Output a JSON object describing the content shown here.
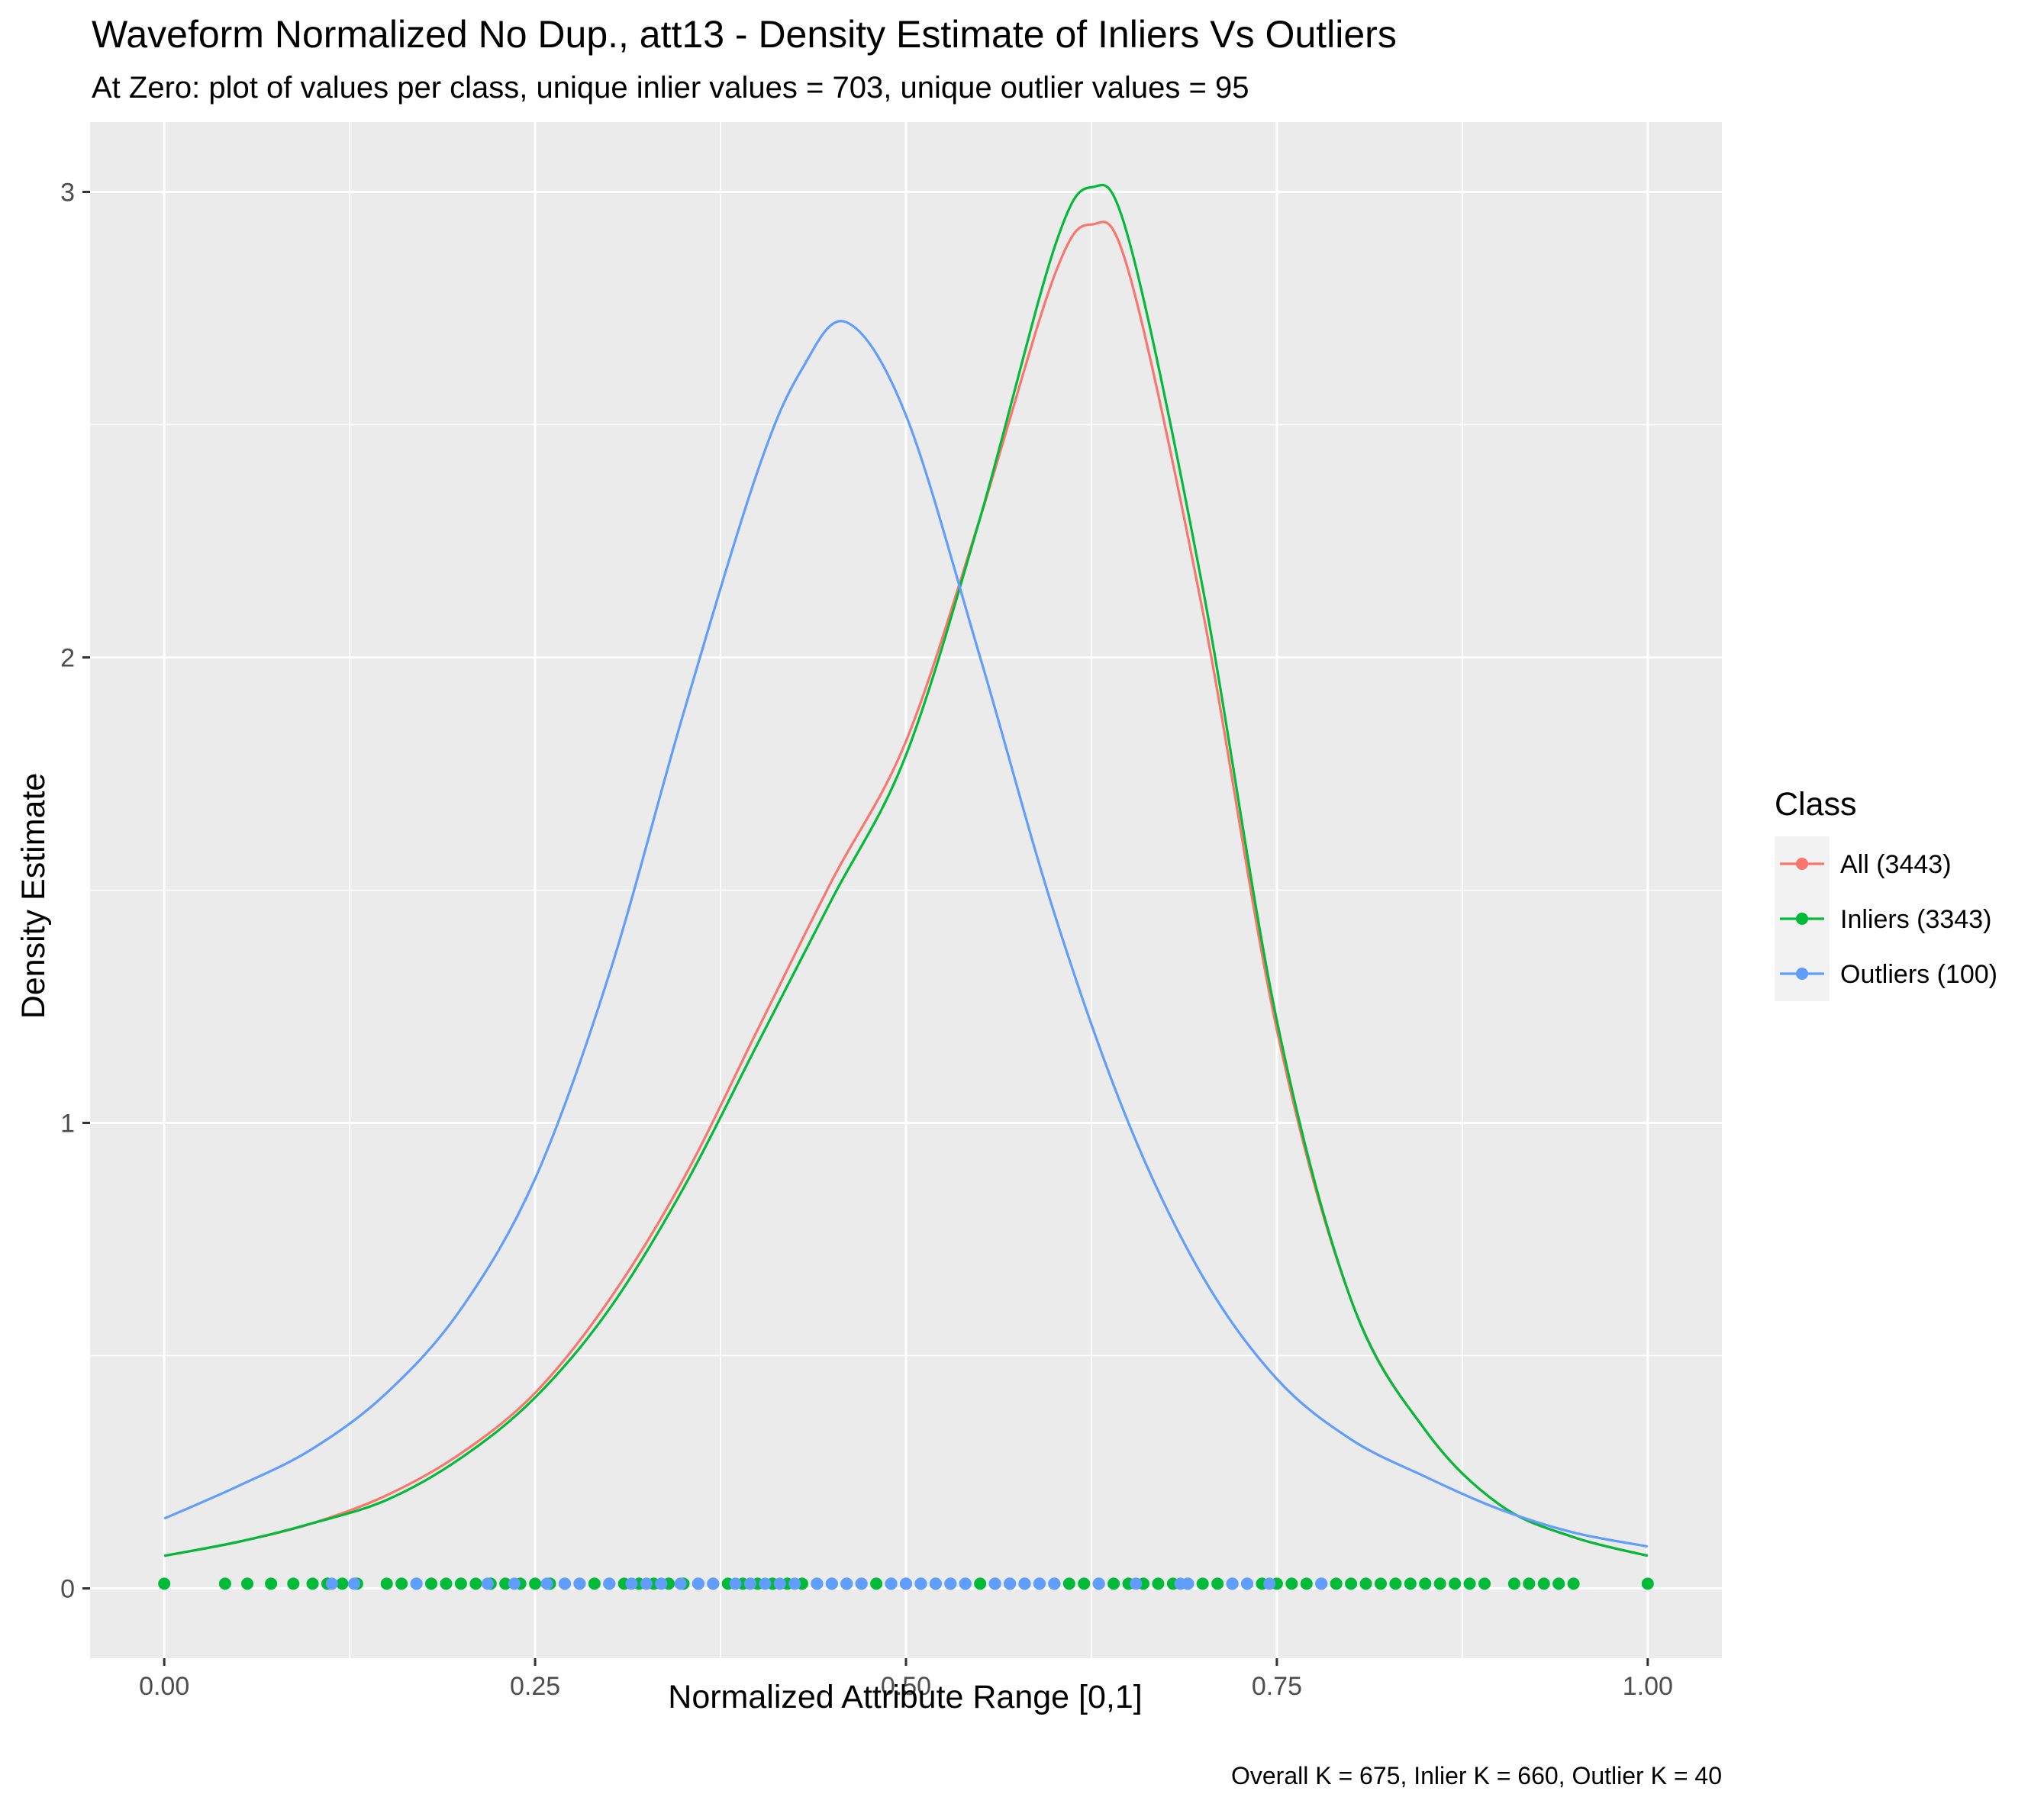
{
  "colors": {
    "all": "#F8766D",
    "inliers": "#00BA38",
    "outliers": "#619CFF",
    "panel": "#EBEBEB",
    "grid": "#FFFFFF",
    "tick_text": "#4D4D4D"
  },
  "chart_data": {
    "type": "line",
    "title": "Waveform Normalized No Dup., att13 - Density Estimate of Inliers Vs Outliers",
    "subtitle": "At Zero: plot of values per class, unique inlier values = 703, unique outlier values = 95",
    "caption": "Overall K = 675, Inlier K = 660, Outlier K = 40",
    "xlabel": "Normalized Attribute Range [0,1]",
    "ylabel": "Density Estimate",
    "xlim": [
      -0.05,
      1.05
    ],
    "ylim": [
      -0.15,
      3.15
    ],
    "x_ticks": [
      0,
      0.25,
      0.5,
      0.75,
      1
    ],
    "x_tick_labels": [
      "0.00",
      "0.25",
      "0.50",
      "0.75",
      "1.00"
    ],
    "y_ticks": [
      0,
      1,
      2,
      3
    ],
    "y_tick_labels": [
      "0",
      "1",
      "2",
      "3"
    ],
    "grid": true,
    "legend": {
      "title": "Class",
      "position": "right",
      "entries": [
        "All (3443)",
        "Inliers (3343)",
        "Outliers (100)"
      ]
    },
    "series": [
      {
        "name": "All (3443)",
        "color_key": "all",
        "x": [
          0,
          0.05,
          0.1,
          0.15,
          0.2,
          0.25,
          0.3,
          0.35,
          0.4,
          0.45,
          0.5,
          0.55,
          0.6,
          0.625,
          0.65,
          0.7,
          0.75,
          0.8,
          0.85,
          0.9,
          0.95,
          1
        ],
        "y": [
          0.07,
          0.1,
          0.14,
          0.2,
          0.29,
          0.42,
          0.62,
          0.88,
          1.2,
          1.52,
          1.82,
          2.3,
          2.82,
          2.93,
          2.83,
          2.1,
          1.2,
          0.62,
          0.34,
          0.18,
          0.11,
          0.07
        ]
      },
      {
        "name": "Inliers (3343)",
        "color_key": "inliers",
        "x": [
          0,
          0.05,
          0.1,
          0.15,
          0.2,
          0.25,
          0.3,
          0.35,
          0.4,
          0.45,
          0.5,
          0.55,
          0.6,
          0.625,
          0.65,
          0.7,
          0.75,
          0.8,
          0.85,
          0.9,
          0.95,
          1
        ],
        "y": [
          0.07,
          0.1,
          0.14,
          0.19,
          0.28,
          0.41,
          0.6,
          0.86,
          1.17,
          1.48,
          1.79,
          2.3,
          2.88,
          3.01,
          2.9,
          2.15,
          1.22,
          0.62,
          0.34,
          0.18,
          0.11,
          0.07
        ]
      },
      {
        "name": "Outliers (100)",
        "color_key": "outliers",
        "x": [
          0,
          0.05,
          0.1,
          0.15,
          0.2,
          0.25,
          0.3,
          0.35,
          0.4,
          0.43,
          0.46,
          0.5,
          0.55,
          0.6,
          0.65,
          0.7,
          0.75,
          0.8,
          0.85,
          0.9,
          0.95,
          1
        ],
        "y": [
          0.15,
          0.22,
          0.3,
          0.42,
          0.6,
          0.88,
          1.32,
          1.88,
          2.4,
          2.62,
          2.72,
          2.52,
          2.0,
          1.45,
          1.0,
          0.67,
          0.45,
          0.32,
          0.24,
          0.17,
          0.12,
          0.09
        ]
      }
    ],
    "rug": {
      "y": 0.01,
      "inliers_x": [
        0,
        0.041,
        0.056,
        0.072,
        0.087,
        0.1,
        0.11,
        0.12,
        0.13,
        0.15,
        0.16,
        0.17,
        0.18,
        0.19,
        0.2,
        0.21,
        0.22,
        0.23,
        0.24,
        0.25,
        0.26,
        0.27,
        0.28,
        0.29,
        0.3,
        0.31,
        0.32,
        0.33,
        0.34,
        0.35,
        0.36,
        0.37,
        0.38,
        0.39,
        0.4,
        0.41,
        0.42,
        0.43,
        0.44,
        0.45,
        0.46,
        0.47,
        0.48,
        0.49,
        0.5,
        0.51,
        0.52,
        0.53,
        0.54,
        0.55,
        0.56,
        0.57,
        0.58,
        0.59,
        0.6,
        0.61,
        0.62,
        0.63,
        0.64,
        0.65,
        0.66,
        0.67,
        0.68,
        0.69,
        0.7,
        0.71,
        0.72,
        0.73,
        0.74,
        0.75,
        0.76,
        0.77,
        0.78,
        0.79,
        0.8,
        0.81,
        0.82,
        0.83,
        0.84,
        0.85,
        0.86,
        0.87,
        0.88,
        0.89,
        0.91,
        0.92,
        0.93,
        0.94,
        0.95,
        1.0
      ],
      "outliers_x": [
        0.113,
        0.128,
        0.17,
        0.218,
        0.236,
        0.258,
        0.27,
        0.28,
        0.3,
        0.315,
        0.325,
        0.335,
        0.348,
        0.36,
        0.37,
        0.385,
        0.395,
        0.405,
        0.415,
        0.425,
        0.44,
        0.45,
        0.46,
        0.47,
        0.49,
        0.5,
        0.51,
        0.52,
        0.53,
        0.54,
        0.56,
        0.57,
        0.58,
        0.59,
        0.6,
        0.63,
        0.655,
        0.685,
        0.69,
        0.72,
        0.73,
        0.745,
        0.78
      ]
    }
  }
}
